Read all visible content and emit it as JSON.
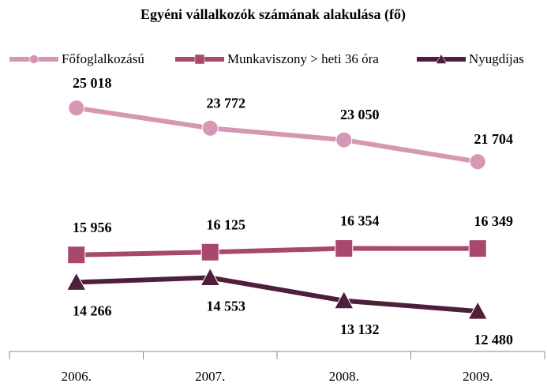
{
  "chart_data": {
    "type": "line",
    "title": "Egyéni vállalkozók számának alakulása (fő)",
    "categories": [
      "2006.",
      "2007.",
      "2008.",
      "2009."
    ],
    "ylim": [
      10000,
      27000
    ],
    "series": [
      {
        "name": "Főfoglalkozású",
        "color": "#d597b3",
        "marker": "circle",
        "values": [
          25018,
          23772,
          23050,
          21704
        ],
        "value_labels": [
          "25 018",
          "23 772",
          "23 050",
          "21 704"
        ]
      },
      {
        "name": "Munkaviszony > heti 36 óra",
        "color": "#a8486f",
        "marker": "square",
        "values": [
          15956,
          16125,
          16354,
          16349
        ],
        "value_labels": [
          "15 956",
          "16 125",
          "16 354",
          "16 349"
        ]
      },
      {
        "name": "Nyugdíjas",
        "color": "#4e1f3a",
        "marker": "triangle",
        "values": [
          14266,
          14553,
          13132,
          12480
        ],
        "value_labels": [
          "14 266",
          "14 553",
          "13 132",
          "12 480"
        ]
      }
    ],
    "legend": "top"
  }
}
